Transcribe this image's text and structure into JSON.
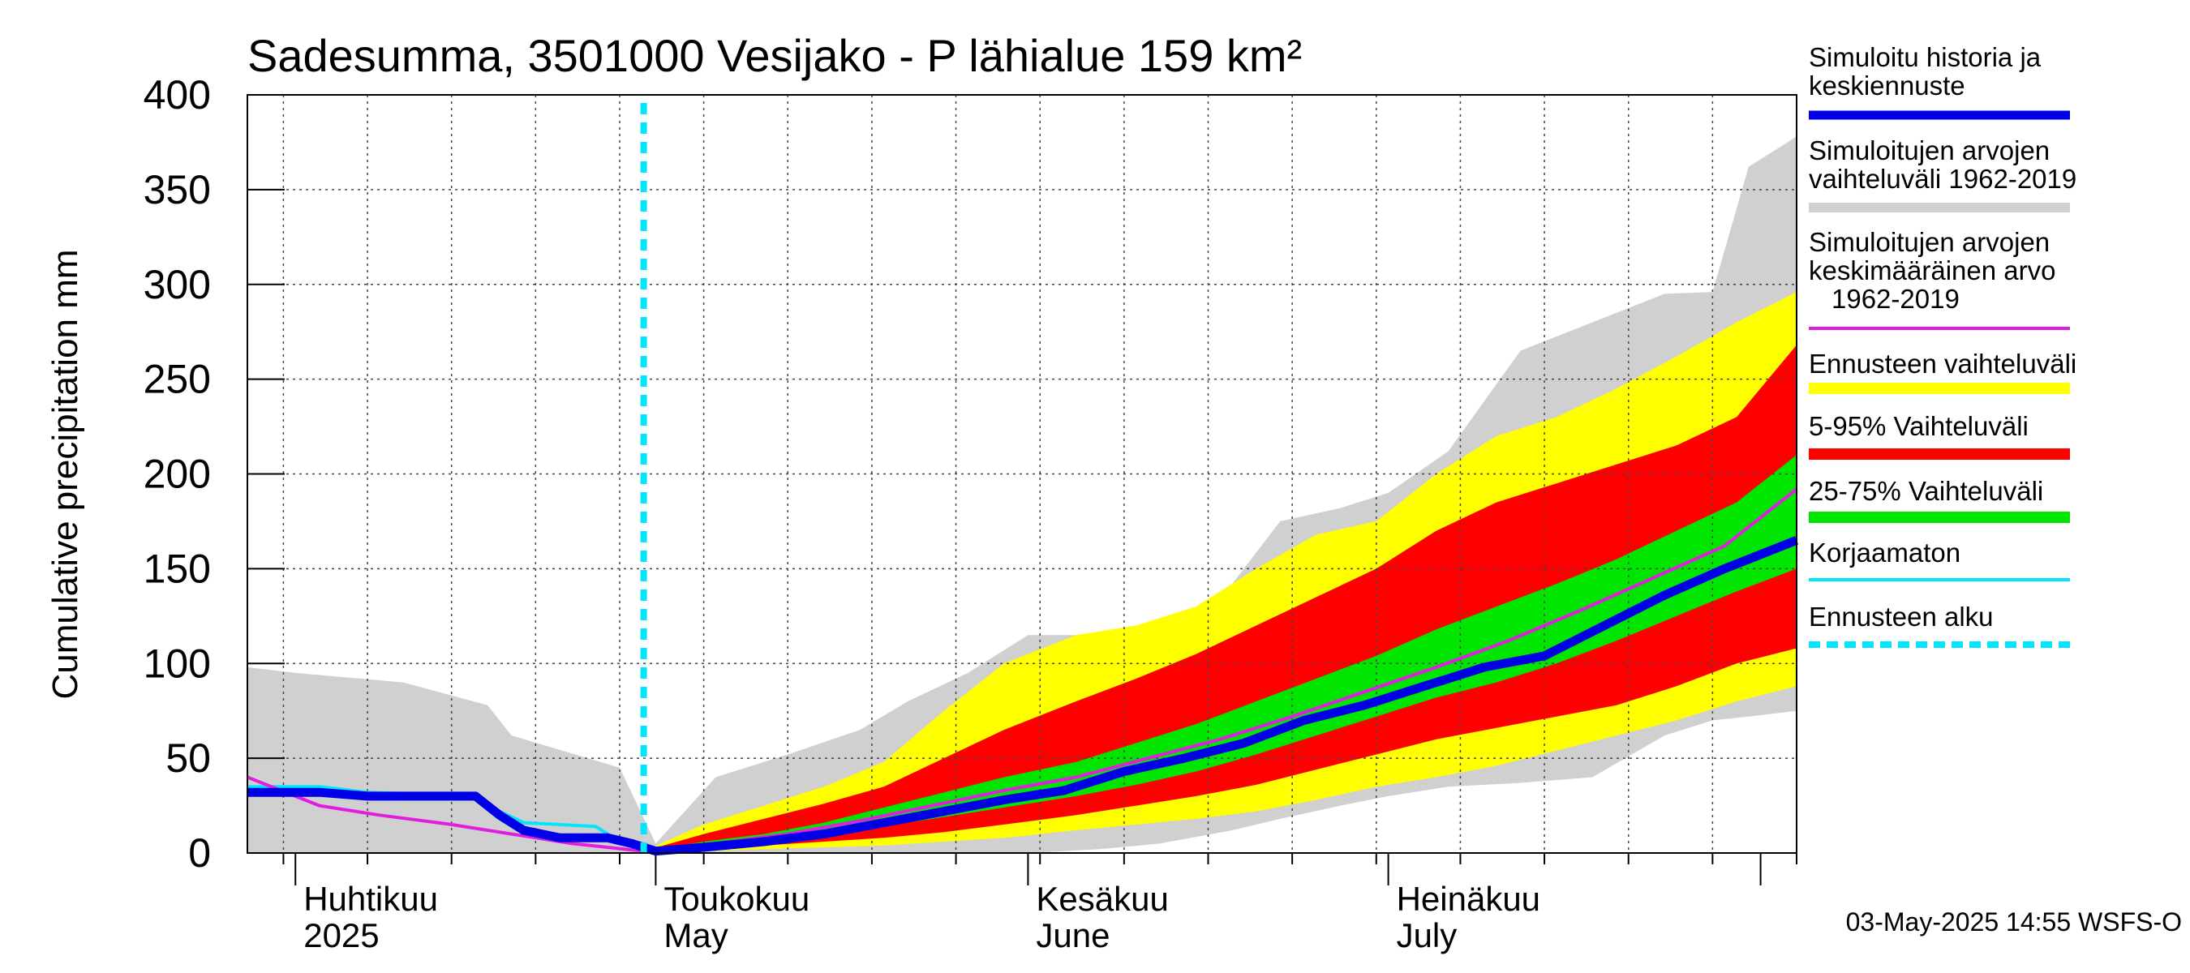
{
  "chart_data": {
    "type": "area",
    "title": "Sadesumma, 3501000 Vesijako - P lähialue 159 km²",
    "ylabel": "Cumulative precipitation   mm",
    "ylim": [
      0,
      400
    ],
    "y_ticks": [
      "0",
      "50",
      "100",
      "150",
      "200",
      "250",
      "300",
      "350",
      "400"
    ],
    "x_range": [
      "2025-03-28",
      "2025-08-04"
    ],
    "x_month_labels": [
      {
        "date": "2025-04-01",
        "line1": "Huhtikuu",
        "line2": "2025"
      },
      {
        "date": "2025-05-01",
        "line1": "Toukokuu",
        "line2": "May"
      },
      {
        "date": "2025-06-01",
        "line1": "Kesäkuu",
        "line2": "June"
      },
      {
        "date": "2025-07-01",
        "line1": "Heinäkuu",
        "line2": "July"
      }
    ],
    "forecast_start": "2025-04-30",
    "grid": true,
    "legend_position": "right",
    "timestamp": "03-May-2025 14:55 WSFS-O",
    "series": [
      {
        "name": "Simuloitu historia ja keskiennuste",
        "color": "#0000e6",
        "kind": "line",
        "x": [
          "2025-03-28",
          "2025-04-03",
          "2025-04-07",
          "2025-04-12",
          "2025-04-16",
          "2025-04-18",
          "2025-04-20",
          "2025-04-23",
          "2025-04-27",
          "2025-04-29",
          "2025-05-01",
          "2025-05-05",
          "2025-05-10",
          "2025-05-15",
          "2025-05-20",
          "2025-05-25",
          "2025-05-30",
          "2025-06-04",
          "2025-06-09",
          "2025-06-14",
          "2025-06-19",
          "2025-06-24",
          "2025-06-29",
          "2025-07-04",
          "2025-07-09",
          "2025-07-14",
          "2025-07-19",
          "2025-07-24",
          "2025-07-29",
          "2025-08-04"
        ],
        "y": [
          32,
          32,
          30,
          30,
          30,
          20,
          12,
          8,
          8,
          5,
          1,
          3,
          6,
          10,
          16,
          22,
          28,
          33,
          43,
          50,
          58,
          70,
          78,
          88,
          98,
          104,
          120,
          136,
          150,
          165
        ]
      },
      {
        "name": "Simuloitujen arvojen vaihteluväli 1962-2019",
        "color": "#d0d0d0",
        "kind": "band",
        "x": [
          "2025-03-28",
          "2025-04-01",
          "2025-04-10",
          "2025-04-17",
          "2025-04-19",
          "2025-04-28",
          "2025-05-01",
          "2025-05-06",
          "2025-05-12",
          "2025-05-18",
          "2025-05-22",
          "2025-05-27",
          "2025-06-01",
          "2025-06-07",
          "2025-06-12",
          "2025-06-18",
          "2025-06-22",
          "2025-06-27",
          "2025-07-01",
          "2025-07-06",
          "2025-07-12",
          "2025-07-18",
          "2025-07-24",
          "2025-07-28",
          "2025-07-31",
          "2025-08-04"
        ],
        "low": [
          0,
          0,
          0,
          0,
          0,
          0,
          0,
          0,
          0,
          0,
          0,
          0,
          0,
          2,
          5,
          12,
          18,
          25,
          30,
          35,
          37,
          40,
          62,
          70,
          72,
          75
        ],
        "high": [
          98,
          95,
          90,
          78,
          62,
          45,
          5,
          40,
          52,
          65,
          80,
          95,
          115,
          115,
          118,
          142,
          175,
          182,
          190,
          212,
          265,
          280,
          295,
          296,
          362,
          378
        ]
      },
      {
        "name": "Simuloitujen arvojen keskimääräinen arvo 1962-2019",
        "color": "#e01ee0",
        "kind": "line",
        "x": [
          "2025-03-28",
          "2025-04-03",
          "2025-04-08",
          "2025-04-14",
          "2025-04-19",
          "2025-04-24",
          "2025-04-30",
          "2025-05-06",
          "2025-05-12",
          "2025-05-18",
          "2025-05-24",
          "2025-05-30",
          "2025-06-05",
          "2025-06-11",
          "2025-06-17",
          "2025-06-23",
          "2025-06-29",
          "2025-07-05",
          "2025-07-11",
          "2025-07-17",
          "2025-07-23",
          "2025-07-29",
          "2025-08-04"
        ],
        "y": [
          40,
          25,
          20,
          15,
          10,
          5,
          1,
          5,
          10,
          17,
          25,
          33,
          40,
          50,
          60,
          72,
          85,
          98,
          112,
          128,
          145,
          162,
          192
        ]
      },
      {
        "name": "Ennusteen vaihteluväli",
        "color": "#ffff00",
        "kind": "band",
        "x": [
          "2025-04-30",
          "2025-05-05",
          "2025-05-10",
          "2025-05-15",
          "2025-05-20",
          "2025-05-25",
          "2025-05-30",
          "2025-06-05",
          "2025-06-10",
          "2025-06-15",
          "2025-06-20",
          "2025-06-25",
          "2025-06-30",
          "2025-07-05",
          "2025-07-10",
          "2025-07-15",
          "2025-07-20",
          "2025-07-25",
          "2025-07-30",
          "2025-08-04"
        ],
        "low": [
          0,
          1,
          2,
          3,
          4,
          6,
          8,
          12,
          15,
          18,
          22,
          28,
          35,
          40,
          46,
          54,
          62,
          70,
          80,
          88
        ],
        "high": [
          1,
          15,
          25,
          35,
          48,
          75,
          100,
          115,
          120,
          130,
          150,
          168,
          175,
          200,
          220,
          230,
          245,
          262,
          280,
          296
        ]
      },
      {
        "name": "5-95% Vaihteluväli",
        "color": "#ff0000",
        "kind": "band",
        "x": [
          "2025-04-30",
          "2025-05-05",
          "2025-05-10",
          "2025-05-15",
          "2025-05-20",
          "2025-05-25",
          "2025-05-30",
          "2025-06-05",
          "2025-06-10",
          "2025-06-15",
          "2025-06-20",
          "2025-06-25",
          "2025-06-30",
          "2025-07-05",
          "2025-07-10",
          "2025-07-15",
          "2025-07-20",
          "2025-07-25",
          "2025-07-30",
          "2025-08-04"
        ],
        "low": [
          0,
          2,
          4,
          6,
          8,
          11,
          15,
          20,
          25,
          30,
          36,
          44,
          52,
          60,
          66,
          72,
          78,
          88,
          100,
          108
        ],
        "high": [
          1,
          10,
          18,
          26,
          35,
          50,
          65,
          80,
          92,
          105,
          120,
          135,
          150,
          170,
          185,
          195,
          205,
          215,
          230,
          268
        ]
      },
      {
        "name": "25-75% Vaihteluväli",
        "color": "#00e600",
        "kind": "band",
        "x": [
          "2025-04-30",
          "2025-05-05",
          "2025-05-10",
          "2025-05-15",
          "2025-05-20",
          "2025-05-25",
          "2025-05-30",
          "2025-06-05",
          "2025-06-10",
          "2025-06-15",
          "2025-06-20",
          "2025-06-25",
          "2025-06-30",
          "2025-07-05",
          "2025-07-10",
          "2025-07-15",
          "2025-07-20",
          "2025-07-25",
          "2025-07-30",
          "2025-08-04"
        ],
        "low": [
          0,
          4,
          7,
          10,
          14,
          19,
          24,
          30,
          36,
          43,
          52,
          62,
          72,
          82,
          90,
          100,
          112,
          125,
          138,
          150
        ],
        "high": [
          1,
          6,
          10,
          16,
          24,
          32,
          40,
          48,
          58,
          68,
          80,
          92,
          104,
          118,
          130,
          142,
          155,
          170,
          185,
          210
        ]
      },
      {
        "name": "Korjaamaton",
        "color": "#00e6ff",
        "kind": "line",
        "x": [
          "2025-03-28",
          "2025-04-03",
          "2025-04-07",
          "2025-04-12",
          "2025-04-16",
          "2025-04-18",
          "2025-04-20",
          "2025-04-26",
          "2025-04-28",
          "2025-04-30"
        ],
        "y": [
          35,
          35,
          32,
          31,
          31,
          22,
          16,
          14,
          6,
          1
        ]
      },
      {
        "name": "Ennusteen alku",
        "color": "#00e6ff",
        "kind": "vline",
        "x": "2025-04-30"
      }
    ]
  }
}
